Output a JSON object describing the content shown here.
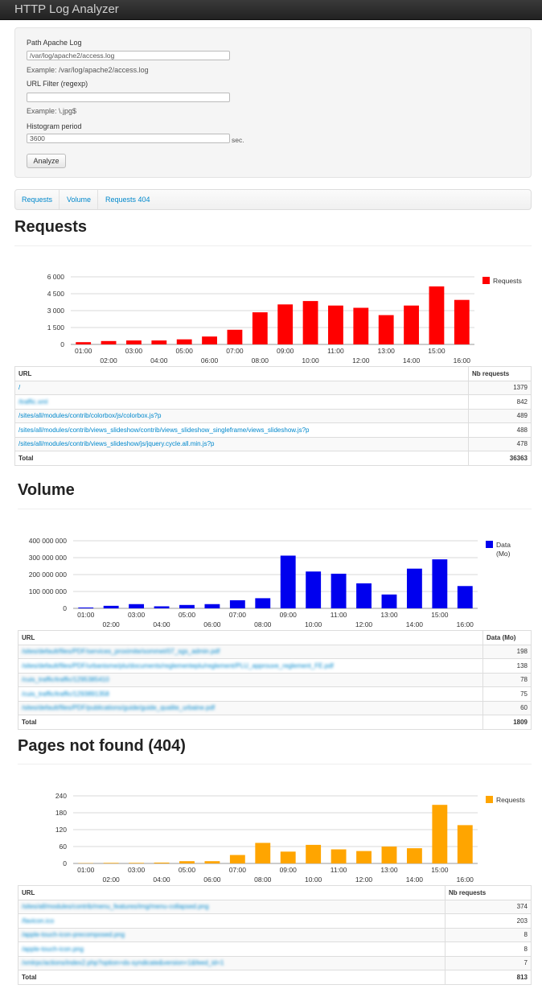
{
  "app": {
    "title": "HTTP Log Analyzer"
  },
  "form": {
    "log_path_label": "Path Apache Log",
    "log_path_value": "/var/log/apache2/access.log",
    "log_path_example": "Example: /var/log/apache2/access.log",
    "url_filter_label": "URL Filter (regexp)",
    "url_filter_value": "",
    "url_filter_example": "Example: \\.jpg$",
    "period_label": "Histogram period",
    "period_value": "3600",
    "period_unit": "sec.",
    "analyze_label": "Analyze"
  },
  "tabs": [
    {
      "label": "Requests"
    },
    {
      "label": "Volume"
    },
    {
      "label": "Requests 404"
    }
  ],
  "sections": {
    "requests": {
      "title": "Requests",
      "table": {
        "col_url": "URL",
        "col_value": "Nb requests",
        "rows": [
          {
            "url": "/",
            "value": "1379",
            "blurred": false
          },
          {
            "url": "/traffic.xml",
            "value": "842",
            "blurred": true
          },
          {
            "url": "/sites/all/modules/contrib/colorbox/js/colorbox.js?p",
            "value": "489",
            "blurred": false
          },
          {
            "url": "/sites/all/modules/contrib/views_slideshow/contrib/views_slideshow_singleframe/views_slideshow.js?p",
            "value": "488",
            "blurred": false
          },
          {
            "url": "/sites/all/modules/contrib/views_slideshow/js/jquery.cycle.all.min.js?p",
            "value": "478",
            "blurred": false
          }
        ],
        "total_label": "Total",
        "total_value": "36363"
      }
    },
    "volume": {
      "title": "Volume",
      "table": {
        "col_url": "URL",
        "col_value": "Data (Mo)",
        "rows": [
          {
            "url": "/sites/default/files/PDF/services_proximite/sommet/07_sgs_admin.pdf",
            "value": "198",
            "blurred": true
          },
          {
            "url": "/sites/default/files/PDF/urbanisme/plu/documents/reglementeplu/reglement/PLU_approuve_reglement_FE.pdf",
            "value": "138",
            "blurred": true
          },
          {
            "url": "/cuis_traffic/traffic/1295385410",
            "value": "78",
            "blurred": true
          },
          {
            "url": "/cuis_traffic/traffic/1293891358",
            "value": "75",
            "blurred": true
          },
          {
            "url": "/sites/default/files/PDF/publications/guide/guide_qualite_urbaine.pdf",
            "value": "60",
            "blurred": true
          }
        ],
        "total_label": "Total",
        "total_value": "1809"
      }
    },
    "notfound": {
      "title": "Pages not found (404)",
      "table": {
        "col_url": "URL",
        "col_value": "Nb requests",
        "rows": [
          {
            "url": "/sites/all/modules/contrib/menu_features/img/menu-collapsed.png",
            "value": "374",
            "blurred": true
          },
          {
            "url": "/favicon.ico",
            "value": "203",
            "blurred": true
          },
          {
            "url": "/apple-touch-icon-precomposed.png",
            "value": "8",
            "blurred": true
          },
          {
            "url": "/apple-touch-icon.png",
            "value": "8",
            "blurred": true
          },
          {
            "url": "/xmlrpc/actions/index2.php?option=ds-syndicate&version=1&feed_id=1",
            "value": "7",
            "blurred": true
          }
        ],
        "total_label": "Total",
        "total_value": "813"
      }
    }
  },
  "chart_data": [
    {
      "type": "bar",
      "series": [
        {
          "name": "Requests",
          "color": "#ff0000",
          "values": [
            200,
            300,
            350,
            350,
            450,
            700,
            1300,
            2850,
            3550,
            3850,
            3450,
            3250,
            2600,
            3450,
            5150,
            3950
          ]
        }
      ],
      "categories": [
        "01:00",
        "02:00",
        "03:00",
        "04:00",
        "05:00",
        "06:00",
        "07:00",
        "08:00",
        "09:00",
        "10:00",
        "11:00",
        "12:00",
        "13:00",
        "14:00",
        "15:00",
        "16:00"
      ],
      "yticks": [
        "0",
        "1 500",
        "3 000",
        "4 500",
        "6 000"
      ],
      "ylim": [
        0,
        6000
      ],
      "grid": true,
      "legend": "right"
    },
    {
      "type": "bar",
      "series": [
        {
          "name": "Data\n(Mo)",
          "color": "#0000ee",
          "values": [
            5000000,
            15000000,
            25000000,
            12000000,
            20000000,
            25000000,
            48000000,
            60000000,
            312000000,
            218000000,
            205000000,
            148000000,
            82000000,
            235000000,
            290000000,
            132000000
          ]
        }
      ],
      "categories": [
        "01:00",
        "02:00",
        "03:00",
        "04:00",
        "05:00",
        "06:00",
        "07:00",
        "08:00",
        "09:00",
        "10:00",
        "11:00",
        "12:00",
        "13:00",
        "14:00",
        "15:00",
        "16:00"
      ],
      "yticks": [
        "0",
        "100 000 000",
        "200 000 000",
        "300 000 000",
        "400 000 000"
      ],
      "ylim": [
        0,
        400000000
      ],
      "grid": true,
      "legend": "right"
    },
    {
      "type": "bar",
      "series": [
        {
          "name": "Requests",
          "color": "#ffa500",
          "values": [
            1,
            2,
            2,
            3,
            8,
            8,
            30,
            73,
            42,
            66,
            50,
            44,
            60,
            54,
            208,
            136
          ]
        }
      ],
      "categories": [
        "01:00",
        "02:00",
        "03:00",
        "04:00",
        "05:00",
        "06:00",
        "07:00",
        "08:00",
        "09:00",
        "10:00",
        "11:00",
        "12:00",
        "13:00",
        "14:00",
        "15:00",
        "16:00"
      ],
      "yticks": [
        "0",
        "60",
        "120",
        "180",
        "240"
      ],
      "ylim": [
        0,
        240
      ],
      "grid": true,
      "legend": "right"
    }
  ]
}
